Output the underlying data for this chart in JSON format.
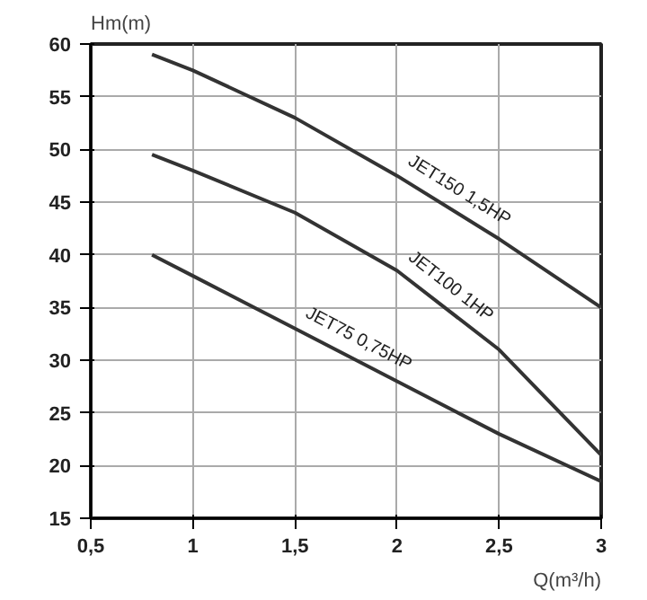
{
  "chart_data": {
    "type": "line",
    "xlabel": "Q(m³/h)",
    "ylabel": "Hm(m)",
    "xlim": [
      0.5,
      3
    ],
    "ylim": [
      15,
      60
    ],
    "xticks": [
      {
        "value": 0.5,
        "label": "0,5"
      },
      1,
      {
        "value": 1.5,
        "label": "1,5"
      },
      2,
      {
        "value": 2.5,
        "label": "2,5"
      },
      3
    ],
    "yticks": [
      15,
      20,
      25,
      30,
      35,
      40,
      45,
      50,
      55,
      60
    ],
    "grid": true,
    "marker": "none",
    "line_style": "solid",
    "x": [
      0.8,
      1,
      1.5,
      2,
      2.5,
      3
    ],
    "series": [
      {
        "name": "JET150 1,5HP",
        "color": "#333333",
        "values": [
          59,
          57.5,
          53,
          47.5,
          41.5,
          35
        ]
      },
      {
        "name": "JET100 1HP",
        "color": "#333333",
        "values": [
          49.5,
          48,
          44,
          38.5,
          31,
          21
        ]
      },
      {
        "name": "JET75 0,75HP",
        "color": "#333333",
        "values": [
          40,
          38,
          33,
          28,
          23,
          18.5
        ]
      }
    ]
  }
}
